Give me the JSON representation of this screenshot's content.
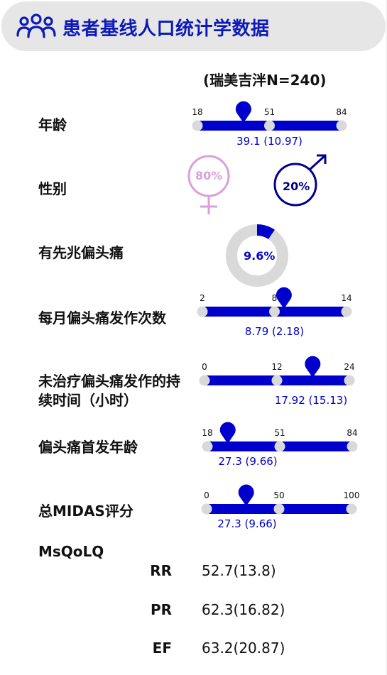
{
  "header": {
    "title": "患者基线人口统计学数据",
    "icon": "people-group-icon"
  },
  "subtitle": "(瑞美吉泮N=240)",
  "colors": {
    "accent": "#0000cc",
    "track_dot": "#d9d9d9",
    "female": "#d9a0dc",
    "male": "#00008b",
    "header_bg": "#e6e6e6"
  },
  "labels": {
    "age": "年龄",
    "sex": "性别",
    "aura": "有先兆偏头痛",
    "monthly": "每月偏头痛发作次数",
    "duration": "未治疗偏头痛发作的持续时间（小时）",
    "onset": "偏头痛首发年龄",
    "midas": "总MIDAS评分",
    "msqolq": "MsQoLQ"
  },
  "chart_data": {
    "type": "summary-infographic",
    "ranges": [
      {
        "key": "age",
        "min": 18,
        "mid": 51,
        "max": 84,
        "mean": 39.1,
        "sd": 10.97,
        "label": "39.1 (10.97)"
      },
      {
        "key": "monthly",
        "min": 2,
        "mid": 8,
        "max": 14,
        "mean": 8.79,
        "sd": 2.18,
        "label": "8.79 (2.18)"
      },
      {
        "key": "duration",
        "min": 0,
        "mid": 12,
        "max": 24,
        "mean": 17.92,
        "sd": 15.13,
        "label": "17.92 (15.13)"
      },
      {
        "key": "onset",
        "min": 18,
        "mid": 51,
        "max": 84,
        "mean": 27.3,
        "sd": 9.66,
        "label": "27.3 (9.66)"
      },
      {
        "key": "midas",
        "min": 0,
        "mid": 50,
        "max": 100,
        "mean": 27.3,
        "sd": 9.66,
        "label": "27.3 (9.66)"
      }
    ],
    "sex": {
      "female_pct": 80,
      "male_pct": 20,
      "female_label": "80%",
      "male_label": "20%"
    },
    "aura": {
      "pct": 9.6,
      "label": "9.6%"
    },
    "msqolq": [
      {
        "name": "RR",
        "value": "52.7(13.8)"
      },
      {
        "name": "PR",
        "value": "62.3(16.82)"
      },
      {
        "name": "EF",
        "value": "63.2(20.87)"
      }
    ]
  }
}
